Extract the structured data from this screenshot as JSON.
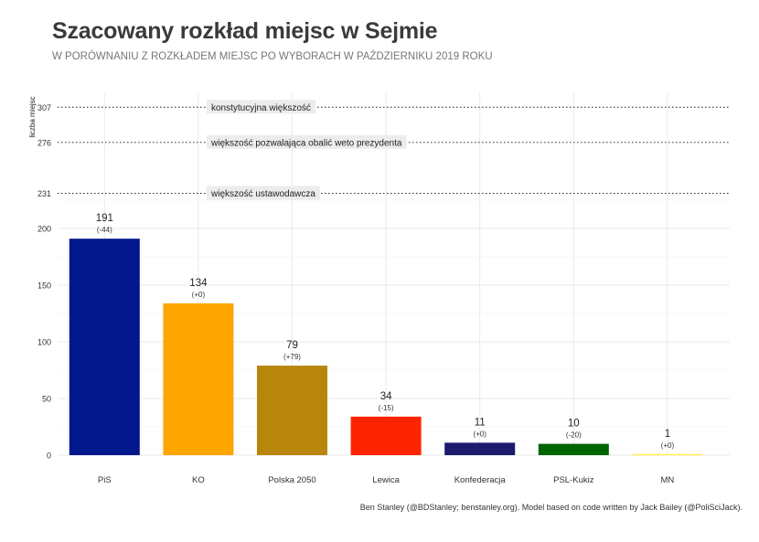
{
  "chart_data": {
    "type": "bar",
    "title": "Szacowany rozkład miejsc w Sejmie",
    "subtitle": "W PORÓWNANIU Z ROZKŁADEM MIEJSC PO WYBORACH W PAŹDZIERNIKU 2019 ROKU",
    "ylabel": "liczba miejsc",
    "xlabel": "",
    "ylim": [
      0,
      320
    ],
    "categories": [
      "PiS",
      "KO",
      "Polska 2050",
      "Lewica",
      "Konfederacja",
      "PSL-Kukiz",
      "MN"
    ],
    "values": [
      191,
      134,
      79,
      34,
      11,
      10,
      1
    ],
    "changes": [
      "(-44)",
      "(+0)",
      "(+79)",
      "(-15)",
      "(+0)",
      "(-20)",
      "(+0)"
    ],
    "colors": [
      "#02178b",
      "#ffa500",
      "#b8860b",
      "#ff2400",
      "#1c1c6e",
      "#006400",
      "#ffee55"
    ],
    "yticks": [
      0,
      50,
      100,
      150,
      200,
      231,
      276,
      307
    ],
    "reference_lines": [
      {
        "value": 307,
        "label": "konstytucyjna większość"
      },
      {
        "value": 276,
        "label": "większość pozwalająca obalić weto prezydenta"
      },
      {
        "value": 231,
        "label": "większość ustawodawcza"
      }
    ],
    "grid": true,
    "caption": "Ben Stanley (@BDStanley; benstanley.org). Model based on code written by Jack Bailey (@PoliSciJack)."
  }
}
